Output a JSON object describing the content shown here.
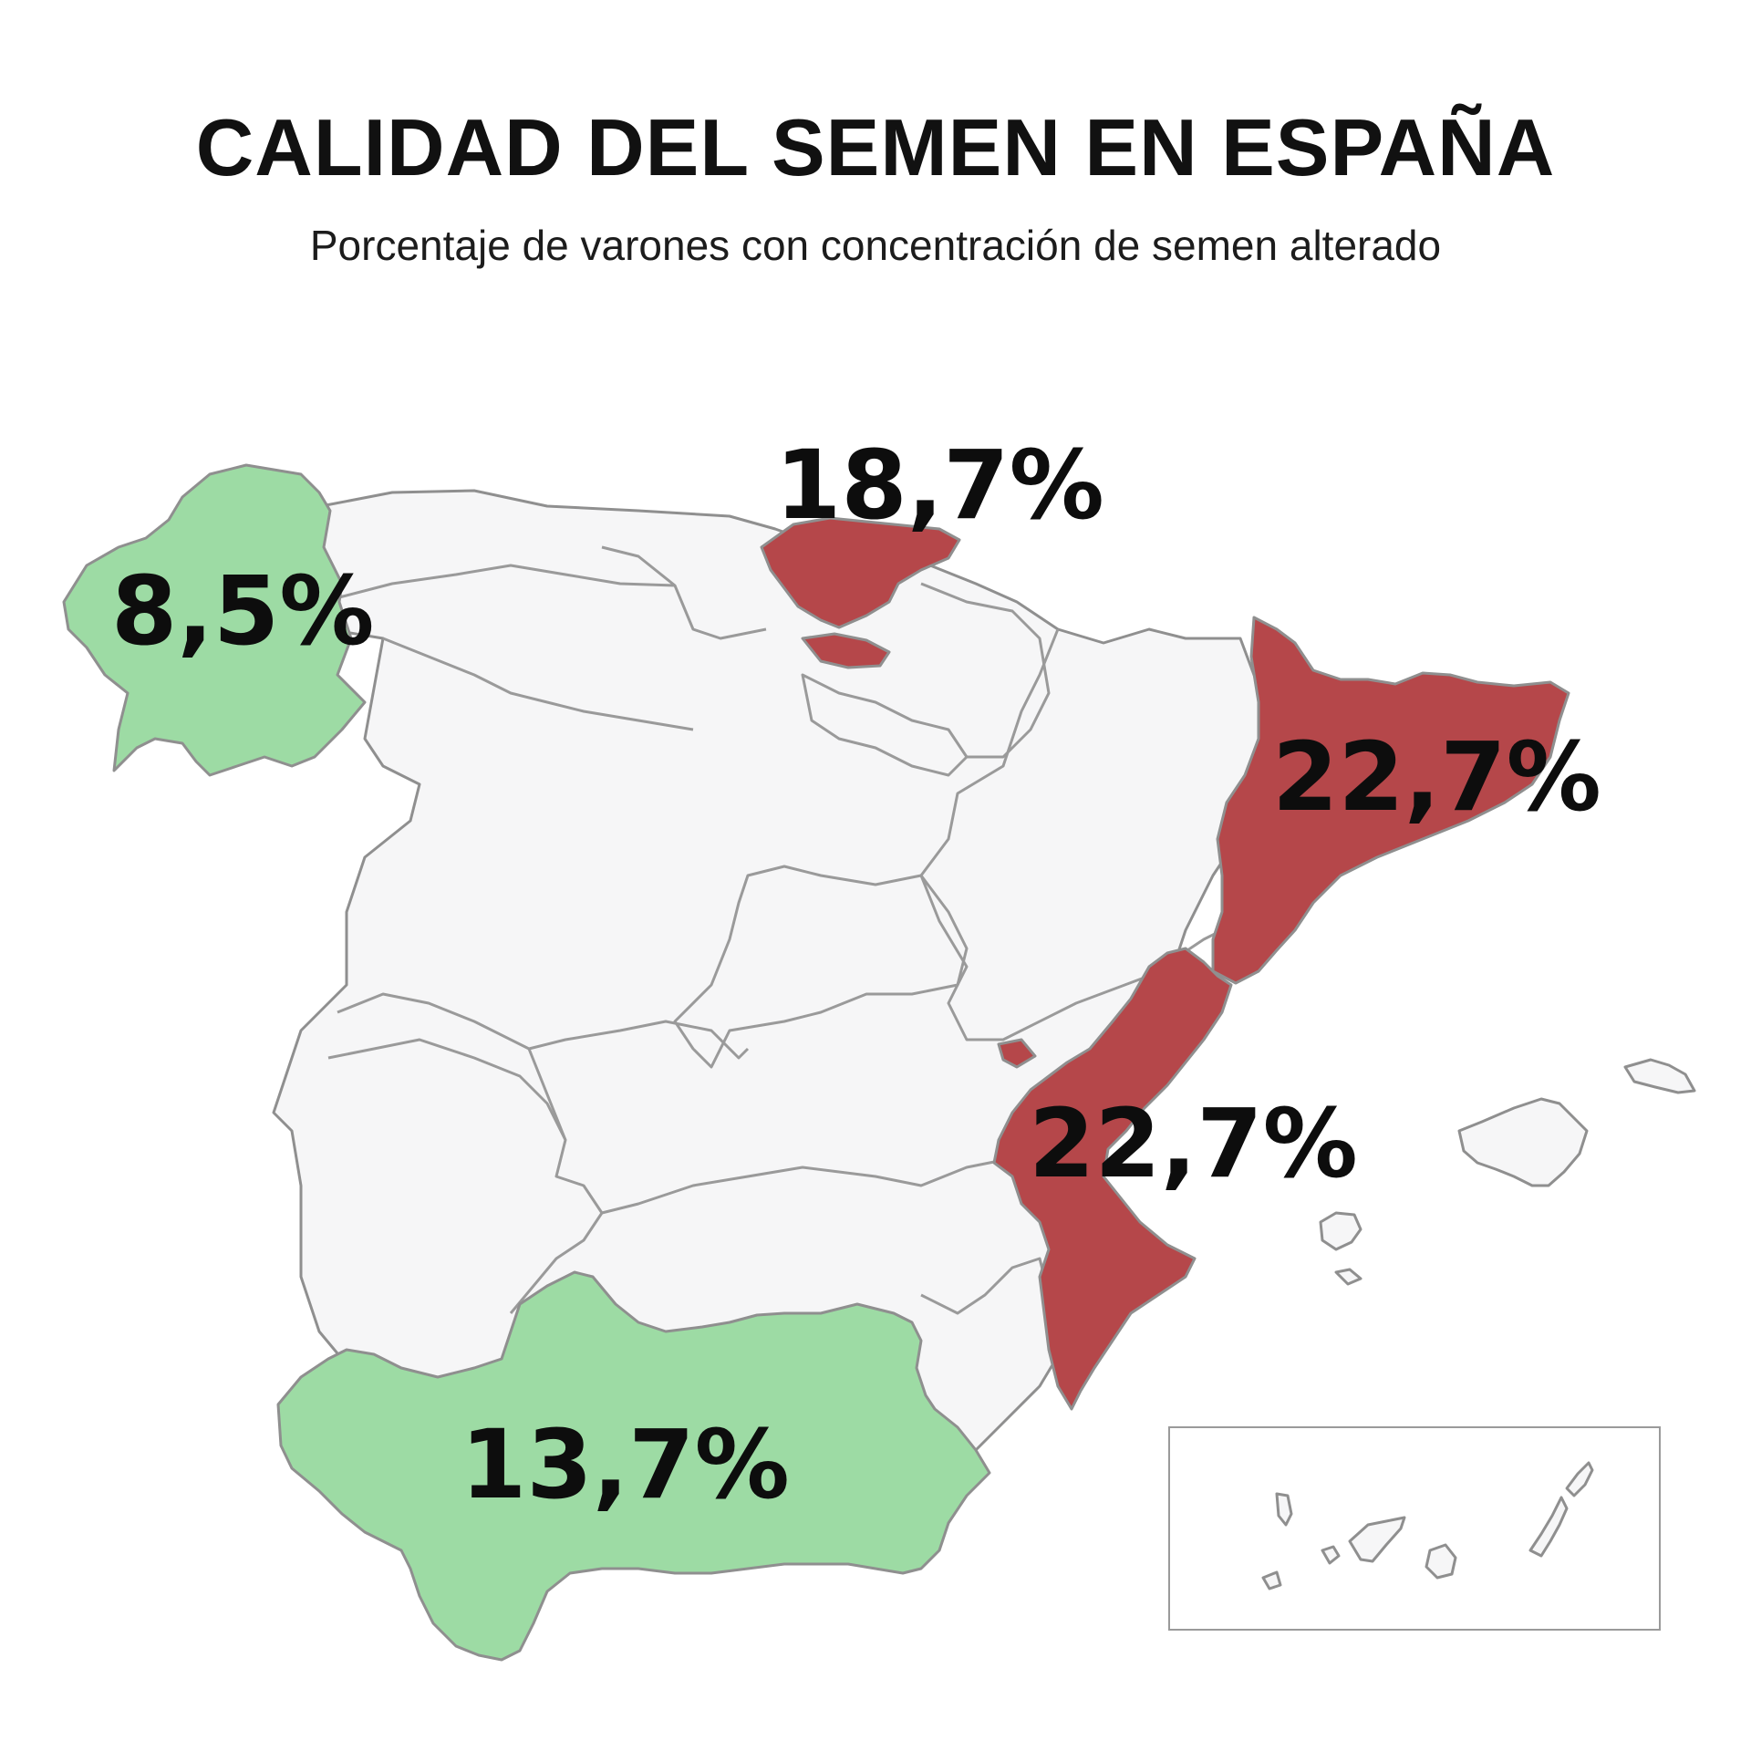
{
  "title": "CALIDAD DEL SEMEN EN ESPAÑA",
  "subtitle": "Porcentaje de varones con concentración de semen alterado",
  "colors": {
    "high": "#b5474a",
    "low": "#9ddba4",
    "neutral": "#f6f6f7",
    "border": "#8f8f8f",
    "text": "#0d0d0d"
  },
  "regions": {
    "galicia": {
      "value": "8,5%",
      "level": "low"
    },
    "pais_vasco": {
      "value": "18,7%",
      "level": "high"
    },
    "cataluna": {
      "value": "22,7%",
      "level": "high"
    },
    "comunidad_valenciana": {
      "value": "22,7%",
      "level": "high"
    },
    "andalucia": {
      "value": "13,7%",
      "level": "low"
    }
  },
  "inset": {
    "label": ""
  }
}
